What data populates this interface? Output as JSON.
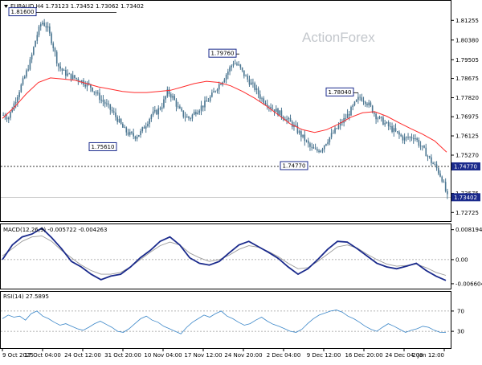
{
  "chart_data": {
    "type": "candlestick",
    "symbol": "EURAUD,H4",
    "header": "EURAUD,H4  1.73123 1.73452 1.73062 1.73402",
    "watermark": "ActionForex",
    "price_ticks": [
      "1.81255",
      "1.80380",
      "1.79505",
      "1.78675",
      "1.77820",
      "1.76975",
      "1.76125",
      "1.75270",
      "1.74770",
      "1.73575",
      "1.72725"
    ],
    "ylim": [
      1.7245,
      1.8205
    ],
    "moving_average_color": "#ff2a2a",
    "candle_color": "#4a7590",
    "annotations": [
      {
        "label": "1.81600",
        "price": 1.816
      },
      {
        "label": "1.79760",
        "price": 1.7976
      },
      {
        "label": "1.78040",
        "price": 1.7804
      },
      {
        "label": "1.75610",
        "price": 1.7561
      },
      {
        "label": "1.74770",
        "price": 1.7477
      }
    ],
    "level_line": {
      "label": "1.74770",
      "price": 1.7477
    },
    "last_price": {
      "label": "1.73402",
      "price": 1.73402
    },
    "close_series": [
      1.7705,
      1.7695,
      1.7758,
      1.782,
      1.788,
      1.795,
      1.805,
      1.812,
      1.8095,
      1.802,
      1.7925,
      1.7895,
      1.788,
      1.787,
      1.786,
      1.7845,
      1.783,
      1.78,
      1.777,
      1.7745,
      1.7715,
      1.768,
      1.764,
      1.762,
      1.761,
      1.7625,
      1.7665,
      1.7705,
      1.772,
      1.775,
      1.781,
      1.778,
      1.773,
      1.77,
      1.769,
      1.772,
      1.774,
      1.776,
      1.779,
      1.783,
      1.786,
      1.79,
      1.794,
      1.792,
      1.788,
      1.785,
      1.782,
      1.778,
      1.776,
      1.7735,
      1.772,
      1.77,
      1.768,
      1.7655,
      1.7625,
      1.7595,
      1.756,
      1.7545,
      1.7555,
      1.759,
      1.762,
      1.765,
      1.768,
      1.771,
      1.775,
      1.7785,
      1.777,
      1.774,
      1.77,
      1.768,
      1.766,
      1.764,
      1.762,
      1.76,
      1.7605,
      1.761,
      1.757,
      1.754,
      1.75,
      1.747,
      1.7425,
      1.734
    ],
    "ma_series": [
      1.769,
      1.774,
      1.78,
      1.785,
      1.787,
      1.7865,
      1.786,
      1.7845,
      1.783,
      1.782,
      1.781,
      1.7805,
      1.7805,
      1.781,
      1.7815,
      1.783,
      1.7845,
      1.7855,
      1.785,
      1.7835,
      1.781,
      1.778,
      1.7745,
      1.7705,
      1.7665,
      1.764,
      1.7628,
      1.764,
      1.7665,
      1.7695,
      1.7715,
      1.772,
      1.77,
      1.7672,
      1.7645,
      1.762,
      1.759,
      1.754
    ],
    "macd": {
      "label": "MACD(12,26,9) -0.005722 -0.004263",
      "ticks": [
        "0.008194",
        "0.00",
        "-0.006604"
      ],
      "ylim": [
        -0.0075,
        0.009
      ],
      "line_color": "#1a2a8c",
      "signal_color": "#9a9a9a",
      "macd_series": [
        0.0,
        0.004,
        0.0062,
        0.007,
        0.0086,
        0.006,
        0.003,
        -0.0005,
        -0.002,
        -0.004,
        -0.0055,
        -0.0045,
        -0.004,
        -0.002,
        0.0005,
        0.0025,
        0.005,
        0.0062,
        0.004,
        0.0005,
        -0.001,
        -0.0015,
        -0.0005,
        0.0018,
        0.004,
        0.005,
        0.0035,
        0.002,
        0.0003,
        -0.002,
        -0.004,
        -0.0025,
        0.0,
        0.0028,
        0.005,
        0.0048,
        0.003,
        0.001,
        -0.001,
        -0.002,
        -0.0025,
        -0.0018,
        -0.001,
        -0.003,
        -0.0045,
        -0.0057
      ],
      "signal_series": [
        0.001,
        0.003,
        0.005,
        0.0062,
        0.0065,
        0.005,
        0.0025,
        0.0005,
        -0.0015,
        -0.003,
        -0.004,
        -0.004,
        -0.0035,
        -0.002,
        0.0,
        0.002,
        0.0038,
        0.0048,
        0.004,
        0.0018,
        0.0005,
        -0.0005,
        0.0,
        0.0012,
        0.0028,
        0.0038,
        0.0034,
        0.0022,
        0.0008,
        -0.001,
        -0.0025,
        -0.0022,
        -0.0005,
        0.0015,
        0.0035,
        0.004,
        0.0032,
        0.0015,
        0.0,
        -0.0012,
        -0.0018,
        -0.0016,
        -0.0012,
        -0.0022,
        -0.0035,
        -0.0043
      ]
    },
    "rsi": {
      "label": "RSI(14) 27.5895",
      "ticks": [
        "70",
        "30"
      ],
      "ylim": [
        0,
        100
      ],
      "line_color": "#3a86c8",
      "levels": [
        70,
        30
      ],
      "series": [
        55,
        62,
        58,
        60,
        52,
        65,
        70,
        60,
        55,
        48,
        42,
        45,
        40,
        35,
        32,
        38,
        45,
        50,
        44,
        38,
        30,
        28,
        35,
        45,
        55,
        60,
        52,
        48,
        40,
        35,
        30,
        25,
        38,
        48,
        55,
        62,
        58,
        65,
        70,
        60,
        55,
        48,
        42,
        45,
        52,
        58,
        50,
        44,
        40,
        35,
        30,
        28,
        34,
        45,
        55,
        62,
        66,
        70,
        72,
        68,
        60,
        55,
        48,
        40,
        34,
        30,
        38,
        45,
        40,
        34,
        28,
        32,
        35,
        40,
        38,
        32,
        28,
        27.6
      ]
    },
    "x_labels": [
      "9 Oct 2025",
      "17 Oct 04:00",
      "24 Oct 12:00",
      "31 Oct 20:00",
      "10 Nov 04:00",
      "17 Nov 12:00",
      "24 Nov 20:00",
      "2 Dec 04:00",
      "9 Dec 12:00",
      "16 Dec 20:00",
      "24 Dec 04:00",
      "2 Jan 12:00"
    ]
  }
}
